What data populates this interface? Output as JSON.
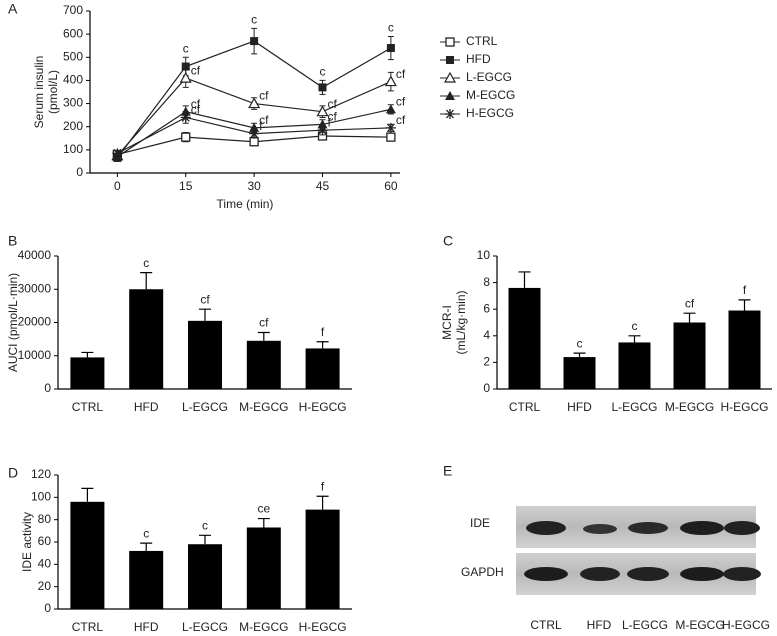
{
  "chart_data": [
    {
      "type": "line",
      "panel": "A",
      "xlabel": "Time (min)",
      "ylabel": [
        "Serum insulin",
        "(pmol/L)"
      ],
      "x": [
        0,
        15,
        30,
        45,
        60
      ],
      "xlim": [
        -6,
        62
      ],
      "xticks": [
        0,
        15,
        30,
        45,
        60
      ],
      "ylim": [
        0,
        700
      ],
      "yticks": [
        0,
        100,
        200,
        300,
        400,
        500,
        600,
        700
      ],
      "legend": "right",
      "series": [
        {
          "name": "CTRL",
          "color": "#222222",
          "marker": "open-square",
          "values": [
            80,
            155,
            135,
            160,
            155
          ],
          "errors": [
            10,
            20,
            15,
            15,
            15
          ],
          "annotations": [
            null,
            null,
            null,
            null,
            null
          ]
        },
        {
          "name": "HFD",
          "color": "#222222",
          "marker": "filled-square",
          "values": [
            65,
            460,
            570,
            370,
            540
          ],
          "errors": [
            10,
            40,
            55,
            30,
            50
          ],
          "annotations": [
            null,
            "c",
            "c",
            "c",
            "c"
          ]
        },
        {
          "name": "L-EGCG",
          "color": "#222222",
          "marker": "open-triangle",
          "values": [
            75,
            410,
            300,
            265,
            395
          ],
          "errors": [
            10,
            40,
            25,
            25,
            40
          ],
          "annotations": [
            null,
            "cf",
            "cf",
            "cf",
            "cf"
          ]
        },
        {
          "name": "M-EGCG",
          "color": "#222222",
          "marker": "filled-triangle",
          "values": [
            70,
            265,
            195,
            210,
            275
          ],
          "errors": [
            10,
            25,
            20,
            20,
            20
          ],
          "annotations": [
            null,
            "cf",
            "cf",
            "cf",
            "cf"
          ]
        },
        {
          "name": "H-EGCG",
          "color": "#222222",
          "marker": "asterisk",
          "values": [
            85,
            240,
            170,
            185,
            195
          ],
          "errors": [
            10,
            25,
            15,
            20,
            15
          ],
          "annotations": [
            null,
            "cf",
            "f",
            "f",
            "cf"
          ]
        }
      ]
    },
    {
      "type": "bar",
      "panel": "B",
      "ylabel": [
        "AUCI (pmol/L·min)"
      ],
      "color": "#000000",
      "categories": [
        "CTRL",
        "HFD",
        "L-EGCG",
        "M-EGCG",
        "H-EGCG"
      ],
      "values": [
        9500,
        30000,
        20500,
        14500,
        12200
      ],
      "errors": [
        1500,
        5000,
        3500,
        2500,
        2000
      ],
      "annotations": [
        null,
        "c",
        "cf",
        "cf",
        "f"
      ],
      "ylim": [
        0,
        40000
      ],
      "yticks": [
        0,
        10000,
        20000,
        30000,
        40000
      ]
    },
    {
      "type": "bar",
      "panel": "C",
      "ylabel": [
        "MCR-I",
        "(mL/kg·min)"
      ],
      "color": "#000000",
      "categories": [
        "CTRL",
        "HFD",
        "L-EGCG",
        "M-EGCG",
        "H-EGCG"
      ],
      "values": [
        7.6,
        2.4,
        3.5,
        5.0,
        5.9
      ],
      "errors": [
        1.2,
        0.3,
        0.5,
        0.7,
        0.8
      ],
      "annotations": [
        null,
        "c",
        "c",
        "cf",
        "f"
      ],
      "ylim": [
        0,
        10
      ],
      "yticks": [
        0,
        2,
        4,
        6,
        8,
        10
      ]
    },
    {
      "type": "bar",
      "panel": "D",
      "ylabel": [
        "IDE activity"
      ],
      "color": "#000000",
      "categories": [
        "CTRL",
        "HFD",
        "L-EGCG",
        "M-EGCG",
        "H-EGCG"
      ],
      "values": [
        96,
        52,
        58,
        73,
        89
      ],
      "errors": [
        12,
        7,
        8,
        8,
        12
      ],
      "annotations": [
        null,
        "c",
        "c",
        "ce",
        "f"
      ],
      "ylim": [
        0,
        120
      ],
      "yticks": [
        0,
        20,
        40,
        60,
        80,
        100,
        120
      ]
    }
  ],
  "blot": {
    "panel": "E",
    "rows": [
      "IDE",
      "GAPDH"
    ],
    "lanes": [
      "CTRL",
      "HFD",
      "L-EGCG",
      "M-EGCG",
      "H-EGCG"
    ]
  }
}
